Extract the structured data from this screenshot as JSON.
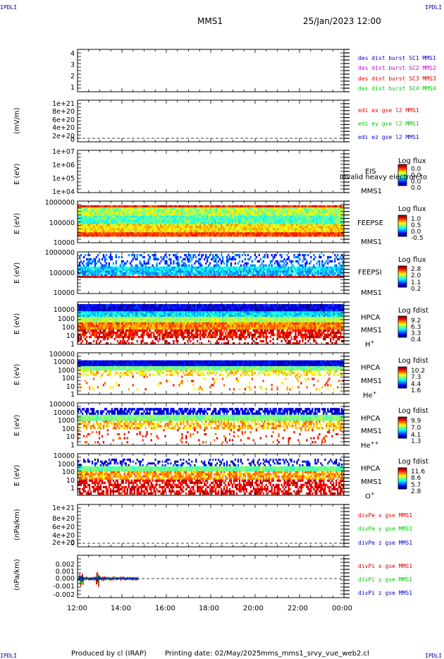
{
  "header": {
    "corner_tl": "IPDLI",
    "corner_tr": "IPDLI",
    "corner_bl": "IPDLI",
    "corner_br": "IPDLI",
    "title": "MMS1",
    "datetime": "25/Jan/2023 12:00"
  },
  "footer": {
    "produced": "Produced by cl (IRAP)",
    "printing": "Printing date: 02/May/2025",
    "file": "mms_mms1_srvy_vue_web2.cl"
  },
  "colors": {
    "blue": "#0000cc",
    "magenta": "#cc00cc",
    "red": "#dd0000",
    "green": "#00cc00"
  },
  "chart_data": [
    {
      "type": "line",
      "panel": "des-dist-burst",
      "ylabel": "",
      "ylim": [
        0.5,
        4.5
      ],
      "yticks": [
        "4",
        "3",
        "2",
        "1"
      ],
      "legend": [
        "des dist burst SC1 MMS1",
        "des dist burst SC2 MMS2",
        "des dist burst SC3 MMS3",
        "des dist burst SC4 MMS4"
      ],
      "series": []
    },
    {
      "type": "line",
      "panel": "edi-e-gse",
      "ylabel": "(mV/m)",
      "ylim": [
        0,
        1e+21
      ],
      "yticks": [
        "1e+21",
        "8e+20",
        "6e+20",
        "4e+20",
        "2e+20",
        "0"
      ],
      "legend": [
        "edi ex gse l2 MMS1",
        "edi ey gse l2 MMS1",
        "edi ez gse l2 MMS1"
      ],
      "series": []
    },
    {
      "type": "heatmap",
      "panel": "eis",
      "ylabel": "E (eV)",
      "yticks": [
        "1e+07",
        "1e+06",
        "1e+05",
        "1e+04"
      ],
      "instrument": "EIS",
      "sc": "MMS1",
      "overlay": "Invalid heavy electron to",
      "cbar_title": "Log flux",
      "cbar_values": [
        "0.0",
        "0.0",
        "0.0",
        "0.0"
      ]
    },
    {
      "type": "heatmap",
      "panel": "feeps-e",
      "ylabel": "E (eV)",
      "yticks": [
        "1000000",
        "100000",
        "10000"
      ],
      "instrument": "FEEPSE",
      "sc": "MMS1",
      "cbar_title": "Log flux",
      "cbar_values": [
        "1.0",
        "0.5",
        "0.0",
        "-0.5"
      ]
    },
    {
      "type": "heatmap",
      "panel": "feeps-i",
      "ylabel": "E (eV)",
      "yticks": [
        "1000000",
        "100000",
        "10000"
      ],
      "instrument": "FEEPSI",
      "sc": "MMS1",
      "cbar_title": "Log flux",
      "cbar_values": [
        "2.8",
        "2.0",
        "1.1",
        "0.2"
      ]
    },
    {
      "type": "heatmap",
      "panel": "hpca-h",
      "ylabel": "E (eV)",
      "yticks": [
        "10000",
        "1000",
        "100",
        "10",
        "1"
      ],
      "instrument": "HPCA",
      "sc": "MMS1",
      "species": "H",
      "charge": "+",
      "cbar_title": "Log fdist",
      "cbar_values": [
        "9.2",
        "6.3",
        "3.3",
        "0.4"
      ]
    },
    {
      "type": "heatmap",
      "panel": "hpca-he",
      "ylabel": "E (eV)",
      "yticks": [
        "100000",
        "10000",
        "1000",
        "100",
        "10",
        "1"
      ],
      "instrument": "HPCA",
      "sc": "MMS1",
      "species": "He",
      "charge": "+",
      "cbar_title": "Log fdist",
      "cbar_values": [
        "10.2",
        "7.3",
        "4.4",
        "1.6"
      ]
    },
    {
      "type": "heatmap",
      "panel": "hpca-hepp",
      "ylabel": "E (eV)",
      "yticks": [
        "100000",
        "10000",
        "1000",
        "100",
        "10",
        "1"
      ],
      "instrument": "HPCA",
      "sc": "MMS1",
      "species": "He",
      "charge": "++",
      "cbar_title": "Log fdist",
      "cbar_values": [
        "9.9",
        "7.0",
        "4.1",
        "1.3"
      ]
    },
    {
      "type": "heatmap",
      "panel": "hpca-o",
      "ylabel": "E (eV)",
      "yticks": [
        "10000",
        "1000",
        "100",
        "10",
        "1"
      ],
      "instrument": "HPCA",
      "sc": "MMS1",
      "species": "O",
      "charge": "+",
      "cbar_title": "Log fdist",
      "cbar_values": [
        "11.6",
        "8.6",
        "5.7",
        "2.8"
      ]
    },
    {
      "type": "line",
      "panel": "divpe",
      "ylabel": "(nPa/km)",
      "ylim": [
        0,
        1e+21
      ],
      "yticks": [
        "1e+21",
        "8e+20",
        "6e+20",
        "4e+20",
        "2e+20",
        "0"
      ],
      "legend": [
        "divPe x gse MMS1",
        "divPe y gse MMS1",
        "divPe z gse MMS1"
      ],
      "series": []
    },
    {
      "type": "line",
      "panel": "divpi",
      "ylabel": "(nPa/km)",
      "ylim": [
        -0.0025,
        0.0025
      ],
      "yticks": [
        "0.002",
        "0.001",
        "0.000",
        "-0.001",
        "-0.002"
      ],
      "legend": [
        "divPi x gse MMS1",
        "divPi y gse MMS1",
        "divPi z gse MMS1"
      ],
      "x_data_range": [
        "12:00",
        "14:45"
      ]
    }
  ],
  "xaxis": {
    "ticks": [
      "12:00",
      "14:00",
      "16:00",
      "18:00",
      "20:00",
      "22:00",
      "00:00"
    ]
  }
}
